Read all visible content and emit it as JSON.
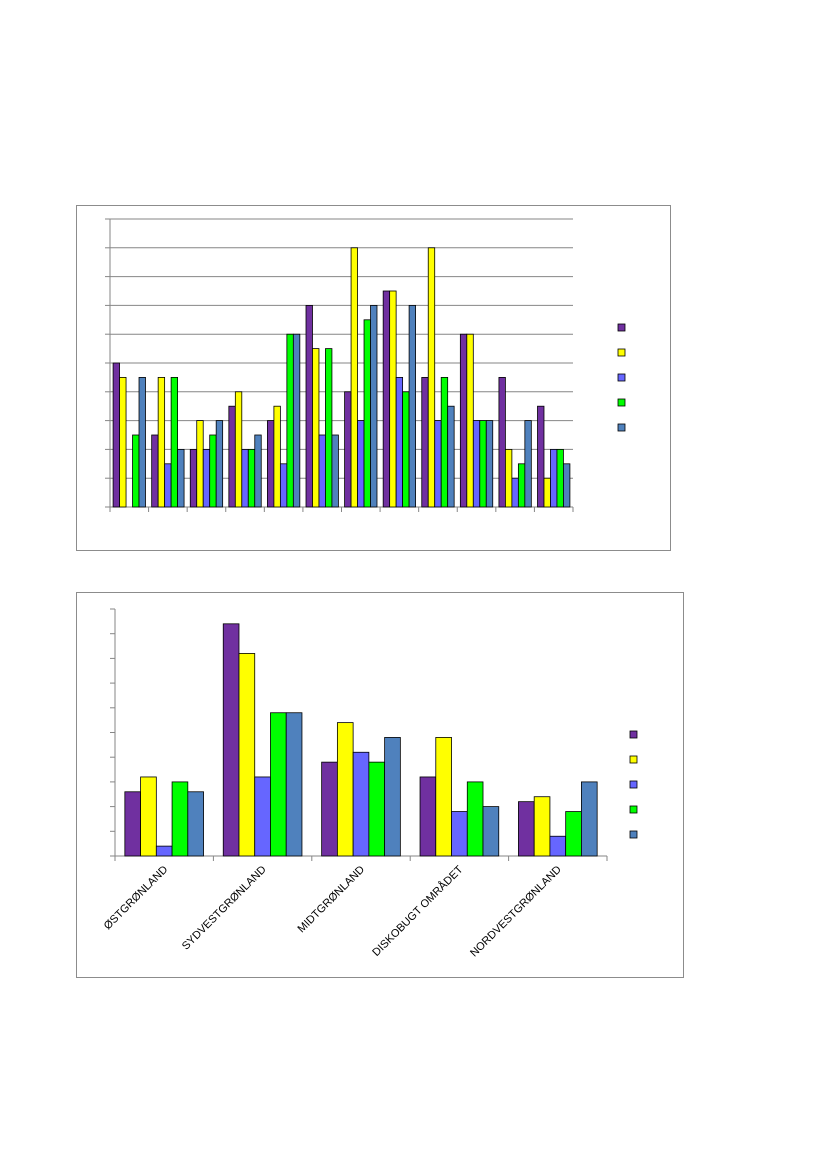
{
  "colors": {
    "purple": "#7030a0",
    "yellow": "#ffff00",
    "blue": "#6666ff",
    "green": "#00ff00",
    "steel": "#4f81bd"
  },
  "chart_data": [
    {
      "type": "bar",
      "title": "",
      "xlabel": "",
      "ylabel": "",
      "ylim": [
        0,
        10
      ],
      "grid": true,
      "legend": "right",
      "categories": [
        "",
        "",
        "",
        "",
        "",
        "",
        "",
        "",
        "",
        "",
        "",
        ""
      ],
      "series": [
        {
          "color": "#7030a0",
          "values": [
            5,
            2.5,
            2,
            3.5,
            3,
            7,
            4,
            7.5,
            4.5,
            6,
            4.5,
            3.5
          ]
        },
        {
          "color": "#ffff00",
          "values": [
            4.5,
            4.5,
            3,
            4,
            3.5,
            5.5,
            9,
            7.5,
            9,
            6,
            2,
            1
          ]
        },
        {
          "color": "#6666ff",
          "values": [
            0,
            1.5,
            2,
            2,
            1.5,
            2.5,
            3,
            4.5,
            3,
            3,
            1,
            2
          ]
        },
        {
          "color": "#00ff00",
          "values": [
            2.5,
            4.5,
            2.5,
            2,
            6,
            5.5,
            6.5,
            4,
            4.5,
            3,
            1.5,
            2
          ]
        },
        {
          "color": "#4f81bd",
          "values": [
            4.5,
            2,
            3,
            2.5,
            6,
            2.5,
            7,
            7,
            3.5,
            3,
            3,
            1.5
          ]
        }
      ]
    },
    {
      "type": "bar",
      "title": "",
      "xlabel": "",
      "ylabel": "",
      "ylim": [
        0,
        10
      ],
      "grid": false,
      "legend": "right",
      "categories": [
        "ØSTGRØNLAND",
        "SYDVESTGRØNLAND",
        "MIDTGRØNLAND",
        "DISKOBUGT OMRÅDET",
        "NORDVESTGRØNLAND"
      ],
      "series": [
        {
          "color": "#7030a0",
          "values": [
            2.6,
            9.4,
            3.8,
            3.2,
            2.2
          ]
        },
        {
          "color": "#ffff00",
          "values": [
            3.2,
            8.2,
            5.4,
            4.8,
            2.4
          ]
        },
        {
          "color": "#6666ff",
          "values": [
            0.4,
            3.2,
            4.2,
            1.8,
            0.8
          ]
        },
        {
          "color": "#00ff00",
          "values": [
            3.0,
            5.8,
            3.8,
            3.0,
            1.8
          ]
        },
        {
          "color": "#4f81bd",
          "values": [
            2.6,
            5.8,
            4.8,
            2.0,
            3.0
          ]
        }
      ]
    }
  ]
}
